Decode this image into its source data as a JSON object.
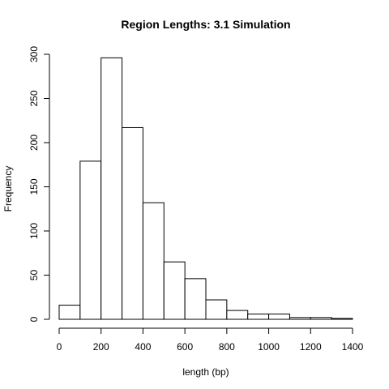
{
  "chart_data": {
    "type": "bar",
    "subtype": "histogram",
    "title": "Region Lengths: 3.1 Simulation",
    "xlabel": "length (bp)",
    "ylabel": "Frequency",
    "bins": [
      {
        "start": 0,
        "end": 100,
        "count": 16
      },
      {
        "start": 100,
        "end": 200,
        "count": 179
      },
      {
        "start": 200,
        "end": 300,
        "count": 296
      },
      {
        "start": 300,
        "end": 400,
        "count": 217
      },
      {
        "start": 400,
        "end": 500,
        "count": 132
      },
      {
        "start": 500,
        "end": 600,
        "count": 65
      },
      {
        "start": 600,
        "end": 700,
        "count": 46
      },
      {
        "start": 700,
        "end": 800,
        "count": 22
      },
      {
        "start": 800,
        "end": 900,
        "count": 10
      },
      {
        "start": 900,
        "end": 1000,
        "count": 6
      },
      {
        "start": 1000,
        "end": 1100,
        "count": 6
      },
      {
        "start": 1100,
        "end": 1200,
        "count": 2
      },
      {
        "start": 1200,
        "end": 1300,
        "count": 2
      },
      {
        "start": 1300,
        "end": 1400,
        "count": 1
      }
    ],
    "xlim": [
      0,
      1400
    ],
    "ylim": [
      0,
      300
    ],
    "x_ticks": [
      0,
      200,
      400,
      600,
      800,
      1000,
      1200,
      1400
    ],
    "y_ticks": [
      0,
      50,
      100,
      150,
      200,
      250,
      300
    ],
    "x_tick_labels": [
      "0",
      "200",
      "400",
      "600",
      "800",
      "1000",
      "1200",
      "1400"
    ],
    "y_tick_labels": [
      "0",
      "50",
      "100",
      "150",
      "200",
      "250",
      "300"
    ],
    "grid": false,
    "legend": "none",
    "bar_fill": "#ffffff",
    "bar_stroke": "#000000"
  }
}
